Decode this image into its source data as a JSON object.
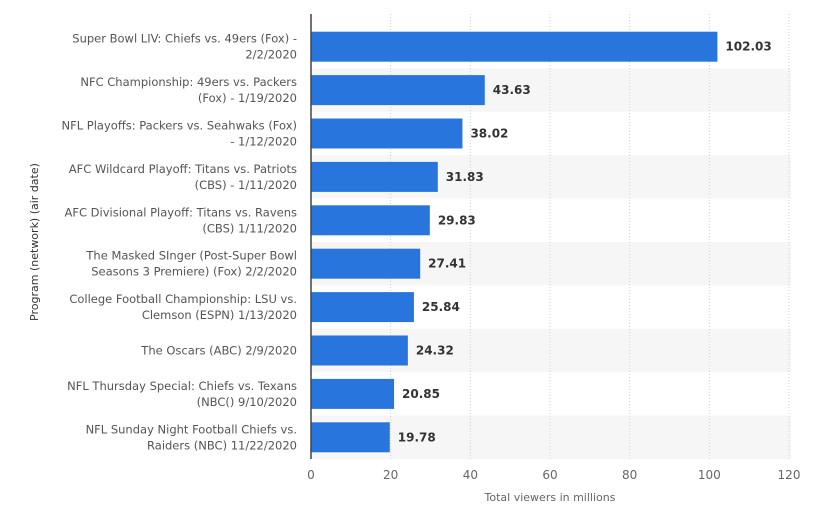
{
  "chart_data": {
    "type": "bar",
    "orientation": "horizontal",
    "categories": [
      [
        "Super Bowl LIV: Chiefs vs. 49ers (Fox) -",
        "2/2/2020"
      ],
      [
        "NFC Championship: 49ers vs. Packers",
        "(Fox) - 1/19/2020"
      ],
      [
        "NFL Playoffs: Packers vs. Seahwaks (Fox)",
        "- 1/12/2020"
      ],
      [
        "AFC Wildcard Playoff: Titans vs. Patriots",
        "(CBS) - 1/11/2020"
      ],
      [
        "AFC Divisional Playoff: Titans vs. Ravens",
        "(CBS) 1/11/2020"
      ],
      [
        "The Masked SInger (Post-Super Bowl",
        "Seasons 3 Premiere) (Fox) 2/2/2020"
      ],
      [
        "College Football Championship: LSU vs.",
        "Clemson (ESPN) 1/13/2020"
      ],
      [
        "The Oscars (ABC) 2/9/2020"
      ],
      [
        "NFL Thursday Special: Chiefs vs. Texans",
        "(NBC() 9/10/2020"
      ],
      [
        "NFL Sunday Night Football Chiefs vs.",
        "Raiders (NBC) 11/22/2020"
      ]
    ],
    "values": [
      102.03,
      43.63,
      38.02,
      31.83,
      29.83,
      27.41,
      25.84,
      24.32,
      20.85,
      19.78
    ],
    "data_labels": [
      "102.03",
      "43.63",
      "38.02",
      "31.83",
      "29.83",
      "27.41",
      "25.84",
      "24.32",
      "20.85",
      "19.78"
    ],
    "xlabel": "Total viewers in millions",
    "ylabel": "Program (network) (air date)",
    "xlim": [
      0,
      120
    ],
    "xticks": [
      "0",
      "20",
      "40",
      "60",
      "80",
      "100",
      "120"
    ],
    "grid": true,
    "colors": {
      "bar": "#2876dd",
      "band": "#f6f6f6",
      "grid": "#d0d0d0"
    }
  }
}
